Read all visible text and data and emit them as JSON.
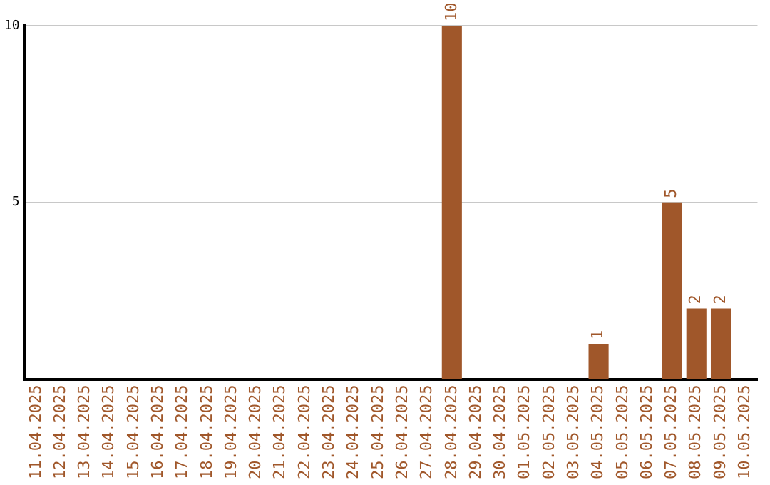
{
  "chart_data": {
    "type": "bar",
    "categories": [
      "11.04.2025",
      "12.04.2025",
      "13.04.2025",
      "14.04.2025",
      "15.04.2025",
      "16.04.2025",
      "17.04.2025",
      "18.04.2025",
      "19.04.2025",
      "20.04.2025",
      "21.04.2025",
      "22.04.2025",
      "23.04.2025",
      "24.04.2025",
      "25.04.2025",
      "26.04.2025",
      "27.04.2025",
      "28.04.2025",
      "29.04.2025",
      "30.04.2025",
      "01.05.2025",
      "02.05.2025",
      "03.05.2025",
      "04.05.2025",
      "05.05.2025",
      "06.05.2025",
      "07.05.2025",
      "08.05.2025",
      "09.05.2025",
      "10.05.2025"
    ],
    "values": [
      0,
      0,
      0,
      0,
      0,
      0,
      0,
      0,
      0,
      0,
      0,
      0,
      0,
      0,
      0,
      0,
      0,
      10,
      0,
      0,
      0,
      0,
      0,
      1,
      0,
      0,
      5,
      2,
      2,
      0
    ],
    "value_labels": [
      null,
      null,
      null,
      null,
      null,
      null,
      null,
      null,
      null,
      null,
      null,
      null,
      null,
      null,
      null,
      null,
      null,
      "10",
      null,
      null,
      null,
      null,
      null,
      "1",
      null,
      null,
      "5",
      "2",
      "2",
      null
    ],
    "color": "#a0572a",
    "ylim": [
      0,
      10
    ],
    "yticks": [
      5,
      10
    ],
    "grid": "y",
    "legend": false
  }
}
